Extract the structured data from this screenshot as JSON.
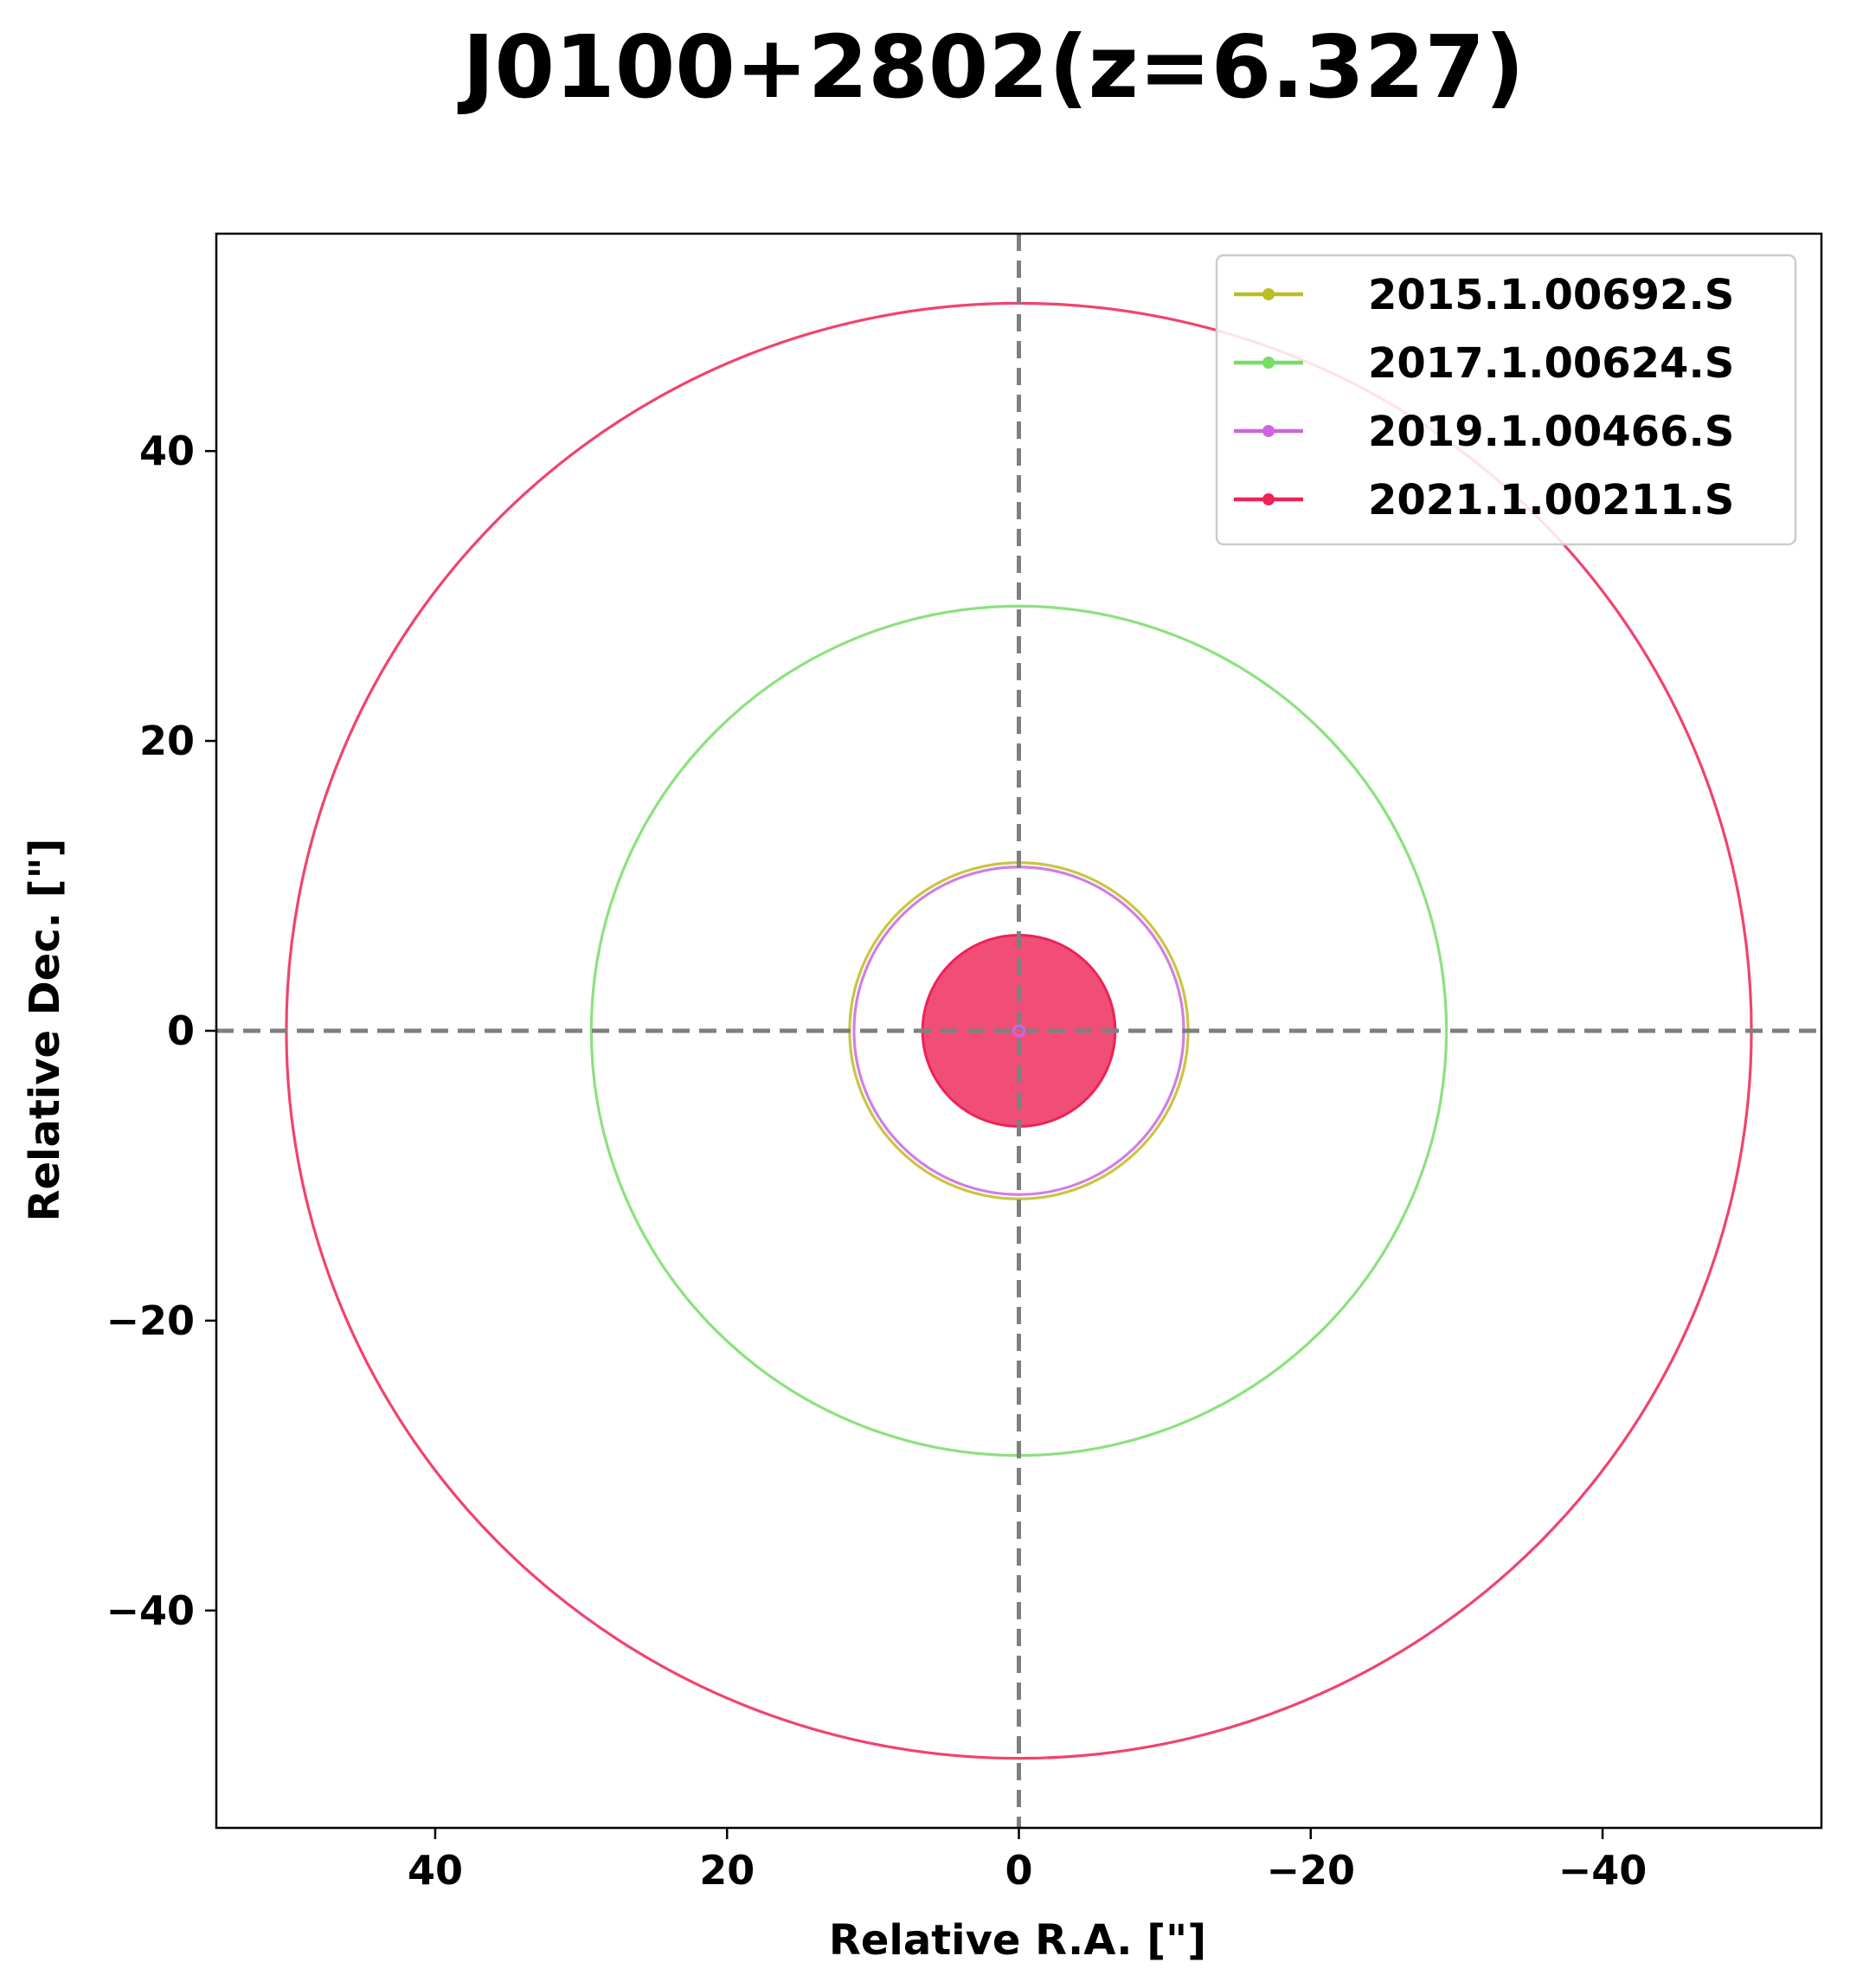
{
  "chart_data": {
    "type": "scatter",
    "title": "J0100+2802(z=6.327)",
    "xlabel": "Relative R.A. [\"]",
    "ylabel": "Relative Dec. [\"]",
    "xlim": [
      55,
      -55
    ],
    "ylim": [
      -55,
      55
    ],
    "x_inverted": true,
    "xticks": [
      40,
      20,
      0,
      -20,
      -40
    ],
    "yticks": [
      40,
      20,
      0,
      -20,
      -40
    ],
    "xtick_labels": [
      "40",
      "20",
      "0",
      "−20",
      "−40"
    ],
    "ytick_labels": [
      "40",
      "20",
      "0",
      "−20",
      "−40"
    ],
    "grid": false,
    "reference_lines": {
      "x": 0,
      "y": 0,
      "style": "dashed",
      "color": "#7f7f7f"
    },
    "legend_position": "top-right",
    "series": [
      {
        "name": "2015.1.00692.S",
        "color": "#bcbd22",
        "center": [
          0,
          0
        ],
        "radius": 11.6,
        "filled": false
      },
      {
        "name": "2017.1.00624.S",
        "color": "#77dd66",
        "center": [
          0,
          0
        ],
        "radius": 29.3,
        "filled": false
      },
      {
        "name": "2019.1.00466.S",
        "color": "#cc66dd",
        "center": [
          0,
          0
        ],
        "radius": 11.3,
        "filled": false
      },
      {
        "name": "2021.1.00211.S",
        "color": "#ee2255",
        "center": [
          0,
          0
        ],
        "radius": 50.2,
        "filled": false,
        "inner_filled_radius": 6.6
      }
    ]
  }
}
